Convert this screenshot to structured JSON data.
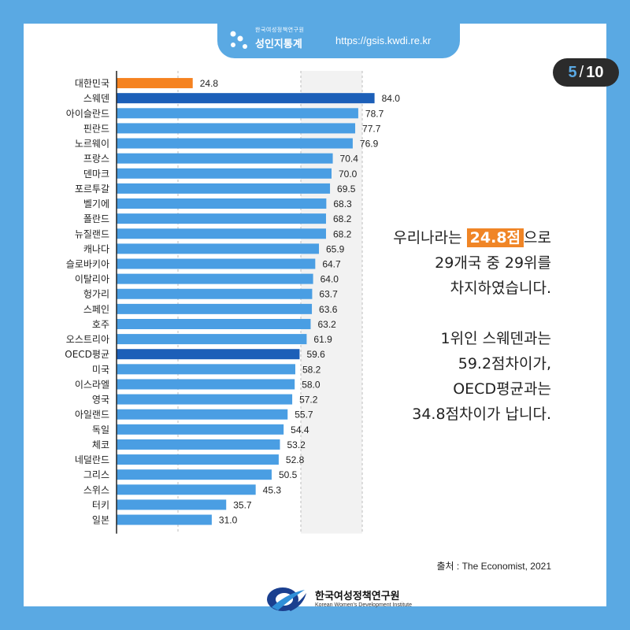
{
  "header": {
    "org_small": "한국여성정책연구원",
    "brand_name": "성인지통계",
    "url": "https://gsis.kwdi.re.kr",
    "page_current": "5",
    "page_total": "10"
  },
  "colors": {
    "background": "#5aa9e3",
    "bar_default": "#4a9ee3",
    "bar_korea": "#f58220",
    "bar_dark": "#1c5fb8",
    "highlight": "#f08526"
  },
  "chart_data": {
    "type": "bar",
    "orientation": "horizontal",
    "categories": [
      "대한민국",
      "스웨덴",
      "아이슬란드",
      "핀란드",
      "노르웨이",
      "프랑스",
      "덴마크",
      "포르투갈",
      "벨기에",
      "폴란드",
      "뉴질랜드",
      "캐나다",
      "슬로바키아",
      "이탈리아",
      "헝가리",
      "스페인",
      "호주",
      "오스트리아",
      "OECD평균",
      "미국",
      "이스라엘",
      "영국",
      "아일랜드",
      "독일",
      "체코",
      "네덜란드",
      "그리스",
      "스위스",
      "터키",
      "일본"
    ],
    "values": [
      24.8,
      84.0,
      78.7,
      77.7,
      76.9,
      70.4,
      70.0,
      69.5,
      68.3,
      68.2,
      68.2,
      65.9,
      64.7,
      64.0,
      63.7,
      63.6,
      63.2,
      61.9,
      59.6,
      58.2,
      58.0,
      57.2,
      55.7,
      54.4,
      53.2,
      52.8,
      50.5,
      45.3,
      35.7,
      31.0
    ],
    "value_labels": [
      "24.8",
      "84.0",
      "78.7",
      "77.7",
      "76.9",
      "70.4",
      "70.0",
      "69.5",
      "68.3",
      "68.2",
      "68.2",
      "65.9",
      "64.7",
      "64.0",
      "63.7",
      "63.6",
      "63.2",
      "61.9",
      "59.6",
      "58.2",
      "58.0",
      "57.2",
      "55.7",
      "54.4",
      "53.2",
      "52.8",
      "50.5",
      "45.3",
      "35.7",
      "31.0"
    ],
    "bar_colors": [
      "#f58220",
      "#1c5fb8",
      "#4a9ee3",
      "#4a9ee3",
      "#4a9ee3",
      "#4a9ee3",
      "#4a9ee3",
      "#4a9ee3",
      "#4a9ee3",
      "#4a9ee3",
      "#4a9ee3",
      "#4a9ee3",
      "#4a9ee3",
      "#4a9ee3",
      "#4a9ee3",
      "#4a9ee3",
      "#4a9ee3",
      "#4a9ee3",
      "#1c5fb8",
      "#4a9ee3",
      "#4a9ee3",
      "#4a9ee3",
      "#4a9ee3",
      "#4a9ee3",
      "#4a9ee3",
      "#4a9ee3",
      "#4a9ee3",
      "#4a9ee3",
      "#4a9ee3",
      "#4a9ee3"
    ],
    "xlim": [
      0,
      100
    ],
    "grid_at": [
      20,
      60,
      80
    ],
    "grid": true
  },
  "message": {
    "l1_pre": "우리나라는",
    "l1_hl": "24.8점",
    "l1_post": "으로",
    "l2": "29개국 중 29위를",
    "l3": "차지하였습니다.",
    "l4": "1위인 스웨덴과는",
    "l5": "59.2점차이가,",
    "l6": "OECD평균과는",
    "l7": "34.8점차이가 납니다."
  },
  "source": "출처 :  The Economist, 2021",
  "footer": {
    "org": "한국여성정책연구원",
    "org_en": "Korean Women's Development Institute"
  }
}
